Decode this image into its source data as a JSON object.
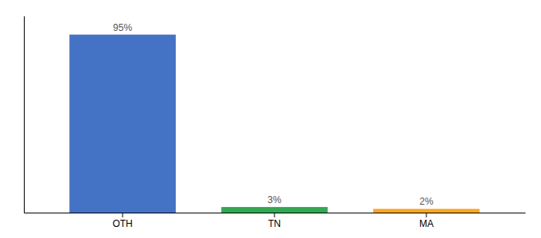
{
  "chart_data": {
    "type": "bar",
    "categories": [
      "OTH",
      "TN",
      "MA"
    ],
    "values": [
      95,
      3,
      2
    ],
    "value_labels": [
      "95%",
      "3%",
      "2%"
    ],
    "colors": [
      "#4472C4",
      "#33A853",
      "#F9A825"
    ],
    "ylim": [
      0,
      105
    ],
    "data_labels": true,
    "tick_labels": "x"
  }
}
